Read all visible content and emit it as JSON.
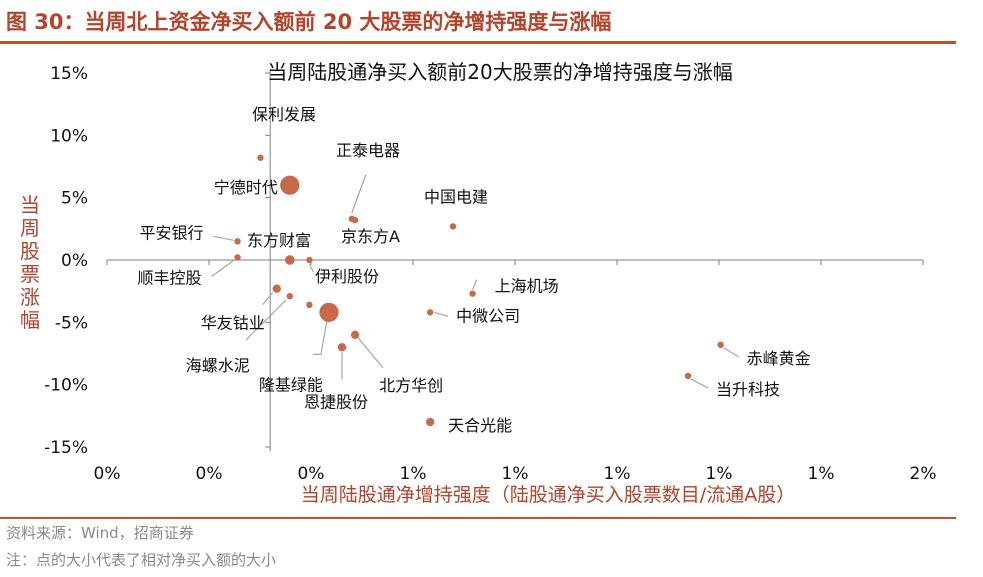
{
  "figure_title": "图 30：当周北上资金净买入额前 20 大股票的净增持强度与涨幅",
  "source_note": "资料来源：Wind，招商证券",
  "size_note": "注：点的大小代表了相对净买入额的大小",
  "colors": {
    "accent": "#b3432b",
    "rule": "#c0502e",
    "point": "#c8694a",
    "axis": "#7f7f7f"
  },
  "chart_data": {
    "type": "scatter",
    "title": "当周陆股通净买入额前20大股票的净增持强度与涨幅",
    "xlabel": "当周陆股通净增持强度（陆股通净买入股票数目/流通A股）",
    "ylabel": "当周股票涨幅",
    "x_tick_labels": [
      "0%",
      "0%",
      "0%",
      "1%",
      "1%",
      "1%",
      "1%",
      "1%",
      "2%"
    ],
    "y_tick_labels": [
      "15%",
      "10%",
      "5%",
      "0%",
      "-5%",
      "-10%",
      "-15%"
    ],
    "xlim": [
      -0.5,
      2.0
    ],
    "ylim": [
      -15,
      15
    ],
    "grid": false,
    "legend": "none",
    "points": [
      {
        "name": "保利发展",
        "x": -0.03,
        "y": 8.2,
        "size": 1
      },
      {
        "name": "宁德时代",
        "x": 0.06,
        "y": 6.0,
        "size": 3
      },
      {
        "name": "正泰电器",
        "x": 0.25,
        "y": 3.3,
        "size": 1
      },
      {
        "name": "中国电建",
        "x": 0.56,
        "y": 2.7,
        "size": 1
      },
      {
        "name": "京东方A",
        "x": 0.26,
        "y": 3.2,
        "size": 1
      },
      {
        "name": "平安银行",
        "x": -0.1,
        "y": 1.5,
        "size": 1
      },
      {
        "name": "东方财富",
        "x": 0.06,
        "y": 0.0,
        "size": 1.5
      },
      {
        "name": "顺丰控股",
        "x": -0.1,
        "y": 0.2,
        "size": 1
      },
      {
        "name": "伊利股份",
        "x": 0.12,
        "y": 0.0,
        "size": 1
      },
      {
        "name": "华友钴业",
        "x": 0.02,
        "y": -2.3,
        "size": 1.3
      },
      {
        "name": "海螺水泥",
        "x": 0.06,
        "y": -2.9,
        "size": 1
      },
      {
        "name": "隆基绿能",
        "x": 0.18,
        "y": -4.2,
        "size": 3
      },
      {
        "name": "上海机场",
        "x": 0.62,
        "y": -2.7,
        "size": 1
      },
      {
        "name": "中微公司",
        "x": 0.49,
        "y": -4.2,
        "size": 1
      },
      {
        "name": "北方华创",
        "x": 0.26,
        "y": -6.0,
        "size": 1.3
      },
      {
        "name": "恩捷股份",
        "x": 0.22,
        "y": -7.0,
        "size": 1.3
      },
      {
        "name": "天合光能",
        "x": 0.49,
        "y": -13.0,
        "size": 1.3
      },
      {
        "name": "赤峰黄金",
        "x": 1.38,
        "y": -6.8,
        "size": 1
      },
      {
        "name": "当升科技",
        "x": 1.28,
        "y": -9.3,
        "size": 1
      },
      {
        "name": "",
        "x": 0.12,
        "y": -3.6,
        "size": 1
      }
    ]
  }
}
